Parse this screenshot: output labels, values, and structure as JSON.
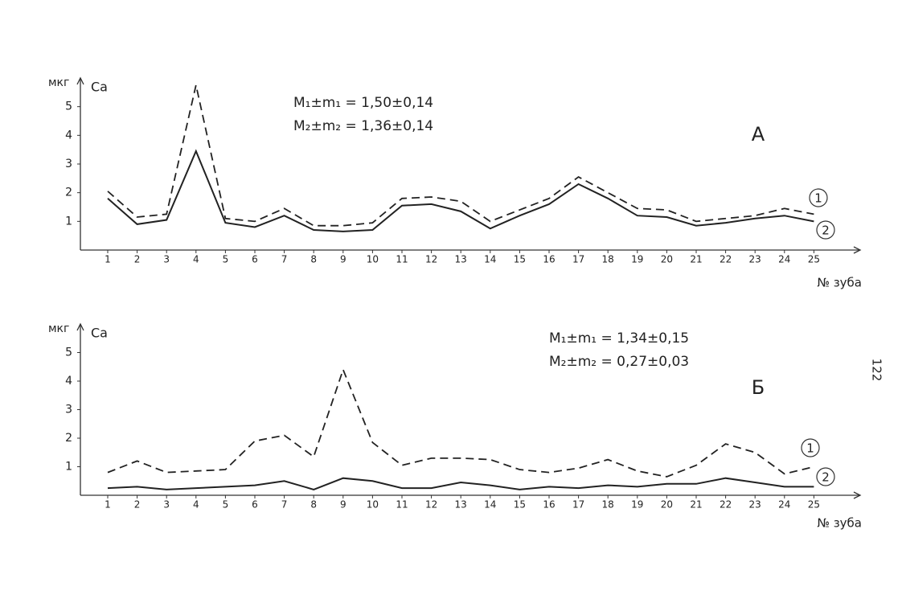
{
  "page_number": "122",
  "chart_data": [
    {
      "type": "line",
      "panel": "А",
      "y_unit": "мкг",
      "y_label": "Ca",
      "x_label": "№ зуба",
      "annotations": [
        "M₁±m₁ = 1,50±0,14",
        "M₂±m₂ = 1,36±0,14"
      ],
      "categories": [
        "1",
        "2",
        "3",
        "4",
        "5",
        "6",
        "7",
        "8",
        "9",
        "10",
        "11",
        "12",
        "13",
        "14",
        "15",
        "16",
        "17",
        "18",
        "19",
        "20",
        "21",
        "22",
        "23",
        "24",
        "25"
      ],
      "series": [
        {
          "name": "1",
          "color": "#222222",
          "style": "dashed",
          "values": [
            2.05,
            1.15,
            1.25,
            5.75,
            1.1,
            1.0,
            1.45,
            0.85,
            0.85,
            0.95,
            1.8,
            1.85,
            1.7,
            1.0,
            1.4,
            1.8,
            2.55,
            2.0,
            1.45,
            1.4,
            1.0,
            1.1,
            1.2,
            1.45,
            1.25
          ]
        },
        {
          "name": "2",
          "color": "#222222",
          "style": "solid",
          "values": [
            1.8,
            0.9,
            1.05,
            3.45,
            0.95,
            0.8,
            1.2,
            0.7,
            0.65,
            0.7,
            1.55,
            1.6,
            1.35,
            0.75,
            1.2,
            1.6,
            2.3,
            1.8,
            1.2,
            1.15,
            0.85,
            0.95,
            1.1,
            1.2,
            1.0
          ]
        }
      ],
      "ylim": [
        0,
        6
      ],
      "yticks": [
        1,
        2,
        3,
        4,
        5
      ],
      "grid": false
    },
    {
      "type": "line",
      "panel": "Б",
      "y_unit": "мкг",
      "y_label": "Ca",
      "x_label": "№ зуба",
      "annotations": [
        "M₁±m₁ = 1,34±0,15",
        "M₂±m₂ = 0,27±0,03"
      ],
      "categories": [
        "1",
        "2",
        "3",
        "4",
        "5",
        "6",
        "7",
        "8",
        "9",
        "10",
        "11",
        "12",
        "13",
        "14",
        "15",
        "16",
        "17",
        "18",
        "19",
        "20",
        "21",
        "22",
        "23",
        "24",
        "25"
      ],
      "series": [
        {
          "name": "1",
          "color": "#222222",
          "style": "dashed",
          "values": [
            0.8,
            1.2,
            0.8,
            0.85,
            0.9,
            1.9,
            2.1,
            1.35,
            4.4,
            1.85,
            1.05,
            1.3,
            1.3,
            1.25,
            0.9,
            0.8,
            0.95,
            1.25,
            0.85,
            0.65,
            1.05,
            1.8,
            1.5,
            0.75,
            1.0
          ]
        },
        {
          "name": "2",
          "color": "#222222",
          "style": "solid",
          "values": [
            0.25,
            0.3,
            0.2,
            0.25,
            0.3,
            0.35,
            0.5,
            0.2,
            0.6,
            0.5,
            0.25,
            0.25,
            0.45,
            0.35,
            0.2,
            0.3,
            0.25,
            0.35,
            0.3,
            0.4,
            0.4,
            0.6,
            0.45,
            0.3,
            0.3
          ]
        }
      ],
      "ylim": [
        0,
        6
      ],
      "yticks": [
        1,
        2,
        3,
        4,
        5
      ],
      "grid": false
    }
  ]
}
